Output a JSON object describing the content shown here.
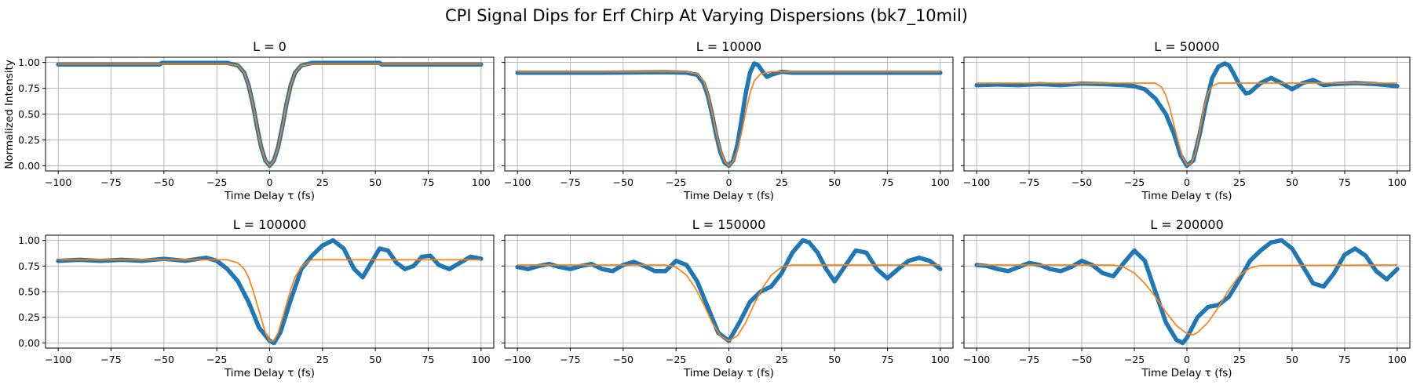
{
  "figure": {
    "title": "CPI Signal Dips for Erf Chirp At Varying Dispersions (bk7_10mil)",
    "colors": {
      "data": "#1f77b4",
      "fit": "#ff7f0e",
      "grid": "#b0b0b0"
    }
  },
  "chart_data": [
    {
      "type": "line",
      "title": "L = 0",
      "xlabel": "Time Delay τ (fs)",
      "ylabel": "Normalized Intensity",
      "xlim": [
        -106,
        106
      ],
      "ylim": [
        -0.05,
        1.05
      ],
      "xticks": [
        -100,
        -75,
        -50,
        -25,
        0,
        25,
        50,
        75,
        100
      ],
      "yticks": [
        0.0,
        0.25,
        0.5,
        0.75,
        1.0
      ],
      "ytick_labels": [
        "0.00",
        "0.25",
        "0.50",
        "0.75",
        "1.00"
      ],
      "grid": true,
      "series": [
        {
          "role": "data",
          "style": "markers",
          "x": [
            -100,
            -80,
            -60,
            -52,
            -51,
            -40,
            -30,
            -20,
            -15,
            -12,
            -10,
            -8,
            -6,
            -4,
            -2,
            0,
            2,
            4,
            6,
            8,
            10,
            12,
            15,
            20,
            30,
            40,
            52,
            53,
            60,
            80,
            100
          ],
          "y": [
            0.98,
            0.98,
            0.98,
            0.98,
            0.995,
            0.995,
            0.995,
            0.995,
            0.97,
            0.9,
            0.78,
            0.6,
            0.38,
            0.18,
            0.05,
            0.0,
            0.05,
            0.18,
            0.38,
            0.6,
            0.78,
            0.9,
            0.97,
            0.995,
            0.995,
            0.995,
            0.995,
            0.98,
            0.98,
            0.98,
            0.98
          ]
        },
        {
          "role": "fit",
          "style": "line",
          "x": [
            -100,
            -20,
            -15,
            -12,
            -10,
            -8,
            -6,
            -4,
            -2,
            0,
            2,
            4,
            6,
            8,
            10,
            12,
            15,
            20,
            100
          ],
          "y": [
            0.985,
            0.985,
            0.97,
            0.9,
            0.78,
            0.6,
            0.38,
            0.18,
            0.05,
            0.0,
            0.05,
            0.18,
            0.38,
            0.6,
            0.78,
            0.9,
            0.97,
            0.985,
            0.985
          ]
        }
      ]
    },
    {
      "type": "line",
      "title": "L = 10000",
      "xlabel": "Time Delay τ (fs)",
      "ylabel": "",
      "xlim": [
        -106,
        106
      ],
      "ylim": [
        -0.05,
        1.05
      ],
      "xticks": [
        -100,
        -75,
        -50,
        -25,
        0,
        25,
        50,
        75,
        100
      ],
      "yticks": [
        0.0,
        0.25,
        0.5,
        0.75,
        1.0
      ],
      "ytick_labels": [
        "",
        "",
        "",
        "",
        ""
      ],
      "grid": true,
      "series": [
        {
          "role": "data",
          "style": "markers",
          "x": [
            -100,
            -60,
            -30,
            -20,
            -15,
            -12,
            -10,
            -8,
            -6,
            -4,
            -2,
            0,
            2,
            4,
            6,
            8,
            10,
            12,
            14,
            16,
            18,
            20,
            25,
            30,
            40,
            60,
            80,
            100
          ],
          "y": [
            0.9,
            0.9,
            0.905,
            0.9,
            0.88,
            0.8,
            0.68,
            0.5,
            0.3,
            0.13,
            0.03,
            0.0,
            0.05,
            0.2,
            0.45,
            0.7,
            0.9,
            0.99,
            0.97,
            0.91,
            0.86,
            0.88,
            0.91,
            0.9,
            0.9,
            0.9,
            0.9,
            0.9
          ]
        },
        {
          "role": "fit",
          "style": "line",
          "x": [
            -100,
            -20,
            -15,
            -12,
            -10,
            -8,
            -6,
            -4,
            -2,
            0,
            2,
            4,
            6,
            8,
            10,
            12,
            15,
            20,
            100
          ],
          "y": [
            0.91,
            0.91,
            0.89,
            0.82,
            0.7,
            0.52,
            0.32,
            0.15,
            0.04,
            0.0,
            0.04,
            0.15,
            0.32,
            0.52,
            0.7,
            0.82,
            0.89,
            0.91,
            0.91
          ]
        }
      ]
    },
    {
      "type": "line",
      "title": "L = 50000",
      "xlabel": "Time Delay τ (fs)",
      "ylabel": "",
      "xlim": [
        -106,
        106
      ],
      "ylim": [
        -0.05,
        1.05
      ],
      "xticks": [
        -100,
        -75,
        -50,
        -25,
        0,
        25,
        50,
        75,
        100
      ],
      "yticks": [
        0.0,
        0.25,
        0.5,
        0.75,
        1.0
      ],
      "ytick_labels": [
        "",
        "",
        "",
        "",
        ""
      ],
      "grid": true,
      "series": [
        {
          "role": "data",
          "style": "markers",
          "x": [
            -100,
            -90,
            -80,
            -70,
            -60,
            -50,
            -40,
            -30,
            -25,
            -20,
            -15,
            -10,
            -6,
            -3,
            0,
            3,
            6,
            9,
            12,
            15,
            18,
            20,
            22,
            25,
            28,
            30,
            35,
            40,
            45,
            50,
            55,
            60,
            65,
            70,
            80,
            90,
            100
          ],
          "y": [
            0.78,
            0.785,
            0.78,
            0.79,
            0.78,
            0.795,
            0.79,
            0.78,
            0.77,
            0.74,
            0.65,
            0.5,
            0.3,
            0.1,
            0.0,
            0.05,
            0.3,
            0.6,
            0.85,
            0.96,
            0.99,
            0.97,
            0.9,
            0.78,
            0.7,
            0.71,
            0.8,
            0.85,
            0.8,
            0.74,
            0.8,
            0.83,
            0.78,
            0.79,
            0.8,
            0.79,
            0.77
          ]
        },
        {
          "role": "fit",
          "style": "line",
          "x": [
            -100,
            -15,
            -12,
            -10,
            -8,
            -6,
            -4,
            -2,
            0,
            2,
            4,
            6,
            8,
            10,
            12,
            15,
            100
          ],
          "y": [
            0.8,
            0.8,
            0.76,
            0.68,
            0.55,
            0.38,
            0.22,
            0.08,
            0.01,
            0.02,
            0.12,
            0.32,
            0.55,
            0.7,
            0.77,
            0.8,
            0.8
          ]
        }
      ]
    },
    {
      "type": "line",
      "title": "L = 100000",
      "xlabel": "Time Delay τ (fs)",
      "ylabel": "",
      "xlim": [
        -106,
        106
      ],
      "ylim": [
        -0.05,
        1.05
      ],
      "xticks": [
        -100,
        -75,
        -50,
        -25,
        0,
        25,
        50,
        75,
        100
      ],
      "yticks": [
        0.0,
        0.25,
        0.5,
        0.75,
        1.0
      ],
      "ytick_labels": [
        "0.00",
        "0.25",
        "0.50",
        "0.75",
        "1.00"
      ],
      "grid": true,
      "series": [
        {
          "role": "data",
          "style": "markers",
          "x": [
            -100,
            -90,
            -80,
            -70,
            -60,
            -50,
            -40,
            -30,
            -25,
            -20,
            -15,
            -10,
            -5,
            0,
            2,
            5,
            10,
            15,
            20,
            25,
            30,
            35,
            40,
            44,
            48,
            52,
            56,
            60,
            64,
            68,
            72,
            76,
            80,
            85,
            90,
            95,
            100
          ],
          "y": [
            0.8,
            0.81,
            0.8,
            0.81,
            0.8,
            0.82,
            0.8,
            0.83,
            0.8,
            0.72,
            0.6,
            0.4,
            0.15,
            0.02,
            0.0,
            0.1,
            0.42,
            0.72,
            0.85,
            0.95,
            1.0,
            0.92,
            0.72,
            0.64,
            0.78,
            0.92,
            0.9,
            0.78,
            0.72,
            0.75,
            0.84,
            0.85,
            0.76,
            0.72,
            0.78,
            0.84,
            0.82
          ]
        },
        {
          "role": "fit",
          "style": "line",
          "x": [
            -100,
            -20,
            -15,
            -12,
            -10,
            -8,
            -6,
            -4,
            -2,
            0,
            2,
            4,
            6,
            8,
            10,
            12,
            15,
            18,
            20,
            25,
            100
          ],
          "y": [
            0.81,
            0.81,
            0.78,
            0.72,
            0.64,
            0.52,
            0.38,
            0.24,
            0.1,
            0.02,
            0.02,
            0.1,
            0.24,
            0.38,
            0.52,
            0.64,
            0.74,
            0.79,
            0.81,
            0.81,
            0.81
          ]
        }
      ]
    },
    {
      "type": "line",
      "title": "L = 150000",
      "xlabel": "Time Delay τ (fs)",
      "ylabel": "",
      "xlim": [
        -106,
        106
      ],
      "ylim": [
        -0.05,
        1.05
      ],
      "xticks": [
        -100,
        -75,
        -50,
        -25,
        0,
        25,
        50,
        75,
        100
      ],
      "yticks": [
        0.0,
        0.25,
        0.5,
        0.75,
        1.0
      ],
      "ytick_labels": [
        "",
        "",
        "",
        "",
        ""
      ],
      "grid": true,
      "series": [
        {
          "role": "data",
          "style": "markers",
          "x": [
            -100,
            -95,
            -90,
            -85,
            -80,
            -75,
            -70,
            -65,
            -60,
            -55,
            -50,
            -45,
            -40,
            -35,
            -30,
            -25,
            -20,
            -15,
            -10,
            -5,
            0,
            5,
            10,
            15,
            20,
            25,
            30,
            35,
            38,
            42,
            46,
            50,
            55,
            60,
            65,
            70,
            75,
            80,
            85,
            90,
            95,
            100
          ],
          "y": [
            0.74,
            0.72,
            0.75,
            0.77,
            0.74,
            0.72,
            0.75,
            0.77,
            0.72,
            0.7,
            0.76,
            0.79,
            0.75,
            0.7,
            0.7,
            0.8,
            0.76,
            0.6,
            0.35,
            0.1,
            0.02,
            0.2,
            0.4,
            0.5,
            0.55,
            0.68,
            0.88,
            1.0,
            0.98,
            0.88,
            0.72,
            0.6,
            0.75,
            0.9,
            0.88,
            0.72,
            0.63,
            0.72,
            0.8,
            0.83,
            0.8,
            0.72
          ]
        },
        {
          "role": "fit",
          "style": "line",
          "x": [
            -100,
            -30,
            -25,
            -20,
            -16,
            -12,
            -8,
            -4,
            0,
            4,
            8,
            12,
            16,
            20,
            25,
            30,
            100
          ],
          "y": [
            0.76,
            0.76,
            0.74,
            0.66,
            0.54,
            0.38,
            0.2,
            0.07,
            0.02,
            0.07,
            0.2,
            0.38,
            0.54,
            0.66,
            0.74,
            0.76,
            0.76
          ]
        }
      ]
    },
    {
      "type": "line",
      "title": "L = 200000",
      "xlabel": "Time Delay τ (fs)",
      "ylabel": "",
      "xlim": [
        -106,
        106
      ],
      "ylim": [
        -0.05,
        1.05
      ],
      "xticks": [
        -100,
        -75,
        -50,
        -25,
        0,
        25,
        50,
        75,
        100
      ],
      "yticks": [
        0.0,
        0.25,
        0.5,
        0.75,
        1.0
      ],
      "ytick_labels": [
        "",
        "",
        "",
        "",
        ""
      ],
      "grid": true,
      "series": [
        {
          "role": "data",
          "style": "markers",
          "x": [
            -100,
            -95,
            -90,
            -85,
            -80,
            -75,
            -70,
            -65,
            -60,
            -55,
            -50,
            -45,
            -40,
            -35,
            -30,
            -25,
            -20,
            -15,
            -10,
            -5,
            -2,
            0,
            5,
            10,
            15,
            20,
            25,
            30,
            35,
            40,
            45,
            50,
            55,
            60,
            65,
            70,
            75,
            80,
            85,
            90,
            95,
            100
          ],
          "y": [
            0.76,
            0.75,
            0.72,
            0.7,
            0.74,
            0.78,
            0.76,
            0.72,
            0.7,
            0.74,
            0.8,
            0.76,
            0.68,
            0.65,
            0.78,
            0.9,
            0.8,
            0.5,
            0.2,
            0.03,
            0.0,
            0.05,
            0.25,
            0.35,
            0.37,
            0.45,
            0.62,
            0.8,
            0.9,
            0.98,
            1.0,
            0.92,
            0.75,
            0.58,
            0.55,
            0.68,
            0.86,
            0.92,
            0.85,
            0.7,
            0.62,
            0.72
          ]
        },
        {
          "role": "fit",
          "style": "line",
          "x": [
            -100,
            -35,
            -30,
            -25,
            -20,
            -15,
            -10,
            -5,
            0,
            3,
            5,
            10,
            15,
            20,
            25,
            30,
            35,
            100
          ],
          "y": [
            0.76,
            0.76,
            0.74,
            0.68,
            0.58,
            0.45,
            0.3,
            0.17,
            0.09,
            0.08,
            0.1,
            0.2,
            0.35,
            0.52,
            0.66,
            0.73,
            0.755,
            0.76
          ]
        }
      ]
    }
  ]
}
